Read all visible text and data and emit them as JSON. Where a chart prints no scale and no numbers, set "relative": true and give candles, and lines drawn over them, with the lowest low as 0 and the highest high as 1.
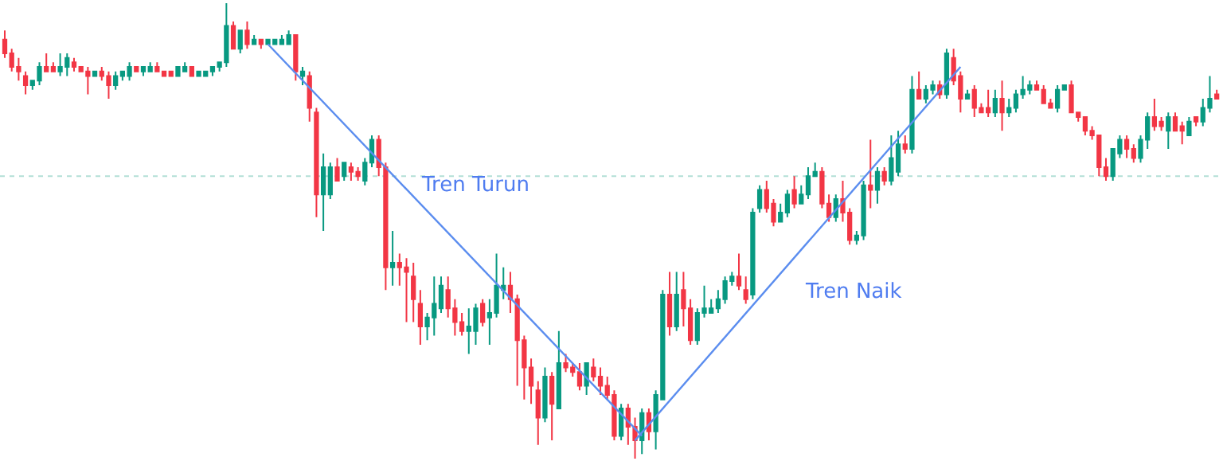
{
  "chart_data": {
    "type": "candlestick",
    "relative": true,
    "categories": [
      null,
      null,
      null,
      null,
      null,
      null,
      null,
      null,
      null,
      null,
      null,
      null,
      null,
      null,
      null,
      null,
      null,
      null,
      null,
      null,
      null,
      null,
      null,
      null,
      null,
      null,
      null,
      null,
      null,
      null,
      null,
      null,
      null,
      null,
      null,
      null,
      null,
      null,
      null,
      null,
      null,
      null,
      null,
      null,
      null,
      null,
      null,
      null,
      null,
      null,
      null,
      null,
      null,
      null,
      null,
      null,
      null,
      null,
      null,
      null,
      null,
      null,
      null,
      null,
      null,
      null,
      null,
      null,
      null,
      null,
      null,
      null,
      null,
      null,
      null,
      null,
      null,
      null,
      null,
      null,
      null,
      null,
      null,
      null,
      null,
      null,
      null,
      null,
      null,
      null,
      null,
      null,
      null,
      null,
      null,
      null,
      null,
      null,
      null,
      null,
      null,
      null,
      null,
      null,
      null,
      null,
      null,
      null,
      null,
      null,
      null,
      null,
      null,
      null,
      null,
      null,
      null,
      null,
      null,
      null,
      null,
      null,
      null,
      null,
      null,
      null,
      null,
      null,
      null,
      null,
      null,
      null,
      null,
      null,
      null,
      null,
      null,
      null,
      null,
      null,
      null,
      null,
      null,
      null,
      null,
      null,
      null,
      null,
      null,
      null,
      null,
      null,
      null,
      null,
      null,
      null,
      null,
      null,
      null,
      null,
      null,
      null,
      null,
      null,
      null,
      null,
      null,
      null,
      null,
      null,
      null,
      null,
      null,
      null,
      null,
      null
    ],
    "ohlc": [
      [
        0.92,
        0.94,
        0.88,
        0.89
      ],
      [
        0.89,
        0.9,
        0.85,
        0.86
      ],
      [
        0.86,
        0.88,
        0.83,
        0.85
      ],
      [
        0.84,
        0.85,
        0.8,
        0.82
      ],
      [
        0.82,
        0.83,
        0.81,
        0.83
      ],
      [
        0.83,
        0.87,
        0.82,
        0.86
      ],
      [
        0.86,
        0.89,
        0.85,
        0.85
      ],
      [
        0.86,
        0.87,
        0.85,
        0.85
      ],
      [
        0.85,
        0.89,
        0.84,
        0.86
      ],
      [
        0.86,
        0.89,
        0.84,
        0.88
      ],
      [
        0.87,
        0.88,
        0.85,
        0.86
      ],
      [
        0.86,
        0.86,
        0.85,
        0.85
      ],
      [
        0.85,
        0.86,
        0.8,
        0.84
      ],
      [
        0.84,
        0.85,
        0.84,
        0.85
      ],
      [
        0.85,
        0.86,
        0.83,
        0.84
      ],
      [
        0.84,
        0.85,
        0.79,
        0.82
      ],
      [
        0.82,
        0.85,
        0.81,
        0.84
      ],
      [
        0.84,
        0.85,
        0.83,
        0.85
      ],
      [
        0.84,
        0.87,
        0.83,
        0.86
      ],
      [
        0.86,
        0.86,
        0.85,
        0.85
      ],
      [
        0.85,
        0.86,
        0.84,
        0.86
      ],
      [
        0.85,
        0.87,
        0.85,
        0.86
      ],
      [
        0.86,
        0.87,
        0.85,
        0.85
      ],
      [
        0.85,
        0.85,
        0.84,
        0.84
      ],
      [
        0.85,
        0.85,
        0.84,
        0.84
      ],
      [
        0.84,
        0.86,
        0.84,
        0.86
      ],
      [
        0.85,
        0.87,
        0.85,
        0.86
      ],
      [
        0.86,
        0.86,
        0.84,
        0.84
      ],
      [
        0.84,
        0.85,
        0.84,
        0.85
      ],
      [
        0.84,
        0.85,
        0.84,
        0.85
      ],
      [
        0.85,
        0.86,
        0.84,
        0.86
      ],
      [
        0.86,
        0.87,
        0.85,
        0.87
      ],
      [
        0.87,
        1.0,
        0.86,
        0.95
      ],
      [
        0.95,
        0.96,
        0.9,
        0.9
      ],
      [
        0.9,
        0.94,
        0.89,
        0.94
      ],
      [
        0.94,
        0.96,
        0.9,
        0.91
      ],
      [
        0.91,
        0.93,
        0.91,
        0.92
      ],
      [
        0.92,
        0.92,
        0.9,
        0.91
      ],
      [
        0.91,
        0.92,
        0.91,
        0.92
      ],
      [
        0.91,
        0.92,
        0.91,
        0.92
      ],
      [
        0.91,
        0.93,
        0.91,
        0.92
      ],
      [
        0.91,
        0.94,
        0.91,
        0.93
      ],
      [
        0.93,
        0.93,
        0.83,
        0.85
      ],
      [
        0.84,
        0.86,
        0.82,
        0.85
      ],
      [
        0.84,
        0.85,
        0.74,
        0.77
      ],
      [
        0.76,
        0.77,
        0.53,
        0.58
      ],
      [
        0.58,
        0.67,
        0.5,
        0.64
      ],
      [
        0.58,
        0.65,
        0.57,
        0.64
      ],
      [
        0.64,
        0.66,
        0.61,
        0.61
      ],
      [
        0.62,
        0.65,
        0.61,
        0.65
      ],
      [
        0.64,
        0.65,
        0.61,
        0.63
      ],
      [
        0.63,
        0.64,
        0.61,
        0.62
      ],
      [
        0.61,
        0.66,
        0.6,
        0.65
      ],
      [
        0.65,
        0.71,
        0.64,
        0.7
      ],
      [
        0.7,
        0.71,
        0.62,
        0.64
      ],
      [
        0.64,
        0.65,
        0.37,
        0.42
      ],
      [
        0.42,
        0.5,
        0.38,
        0.43
      ],
      [
        0.43,
        0.45,
        0.38,
        0.42
      ],
      [
        0.42,
        0.44,
        0.3,
        0.41
      ],
      [
        0.4,
        0.43,
        0.3,
        0.35
      ],
      [
        0.34,
        0.37,
        0.25,
        0.29
      ],
      [
        0.29,
        0.32,
        0.26,
        0.31
      ],
      [
        0.31,
        0.4,
        0.27,
        0.34
      ],
      [
        0.33,
        0.4,
        0.32,
        0.38
      ],
      [
        0.37,
        0.4,
        0.31,
        0.33
      ],
      [
        0.33,
        0.35,
        0.27,
        0.3
      ],
      [
        0.3,
        0.32,
        0.27,
        0.28
      ],
      [
        0.28,
        0.33,
        0.23,
        0.29
      ],
      [
        0.28,
        0.34,
        0.25,
        0.33
      ],
      [
        0.34,
        0.35,
        0.29,
        0.3
      ],
      [
        0.31,
        0.35,
        0.25,
        0.32
      ],
      [
        0.32,
        0.45,
        0.31,
        0.38
      ],
      [
        0.37,
        0.42,
        0.35,
        0.38
      ],
      [
        0.38,
        0.41,
        0.32,
        0.35
      ],
      [
        0.35,
        0.36,
        0.16,
        0.26
      ],
      [
        0.26,
        0.27,
        0.13,
        0.2
      ],
      [
        0.2,
        0.22,
        0.12,
        0.16
      ],
      [
        0.15,
        0.17,
        0.03,
        0.09
      ],
      [
        0.09,
        0.2,
        0.08,
        0.18
      ],
      [
        0.18,
        0.19,
        0.04,
        0.12
      ],
      [
        0.11,
        0.28,
        0.11,
        0.21
      ],
      [
        0.21,
        0.23,
        0.19,
        0.2
      ],
      [
        0.2,
        0.21,
        0.18,
        0.19
      ],
      [
        0.19,
        0.21,
        0.15,
        0.16
      ],
      [
        0.16,
        0.21,
        0.14,
        0.21
      ],
      [
        0.2,
        0.22,
        0.17,
        0.18
      ],
      [
        0.18,
        0.2,
        0.14,
        0.16
      ],
      [
        0.16,
        0.18,
        0.13,
        0.14
      ],
      [
        0.14,
        0.15,
        0.04,
        0.05
      ],
      [
        0.05,
        0.12,
        0.04,
        0.11
      ],
      [
        0.11,
        0.12,
        0.03,
        0.07
      ],
      [
        0.07,
        0.09,
        0.0,
        0.04
      ],
      [
        0.04,
        0.11,
        0.01,
        0.1
      ],
      [
        0.1,
        0.11,
        0.04,
        0.06
      ],
      [
        0.06,
        0.15,
        0.02,
        0.14
      ],
      [
        0.13,
        0.37,
        0.13,
        0.36
      ],
      [
        0.36,
        0.41,
        0.27,
        0.29
      ],
      [
        0.29,
        0.41,
        0.28,
        0.36
      ],
      [
        0.37,
        0.41,
        0.29,
        0.33
      ],
      [
        0.33,
        0.35,
        0.25,
        0.26
      ],
      [
        0.26,
        0.33,
        0.25,
        0.32
      ],
      [
        0.32,
        0.38,
        0.31,
        0.33
      ],
      [
        0.32,
        0.35,
        0.32,
        0.33
      ],
      [
        0.33,
        0.37,
        0.32,
        0.35
      ],
      [
        0.35,
        0.4,
        0.34,
        0.39
      ],
      [
        0.39,
        0.41,
        0.38,
        0.4
      ],
      [
        0.4,
        0.45,
        0.37,
        0.38
      ],
      [
        0.37,
        0.4,
        0.34,
        0.35
      ],
      [
        0.36,
        0.55,
        0.35,
        0.54
      ],
      [
        0.55,
        0.6,
        0.54,
        0.59
      ],
      [
        0.59,
        0.61,
        0.54,
        0.55
      ],
      [
        0.56,
        0.57,
        0.51,
        0.52
      ],
      [
        0.52,
        0.56,
        0.52,
        0.54
      ],
      [
        0.54,
        0.59,
        0.53,
        0.58
      ],
      [
        0.59,
        0.62,
        0.55,
        0.56
      ],
      [
        0.56,
        0.6,
        0.56,
        0.58
      ],
      [
        0.58,
        0.64,
        0.57,
        0.62
      ],
      [
        0.62,
        0.65,
        0.62,
        0.63
      ],
      [
        0.63,
        0.64,
        0.55,
        0.56
      ],
      [
        0.56,
        0.58,
        0.52,
        0.53
      ],
      [
        0.53,
        0.58,
        0.52,
        0.57
      ],
      [
        0.57,
        0.61,
        0.52,
        0.54
      ],
      [
        0.54,
        0.55,
        0.47,
        0.48
      ],
      [
        0.48,
        0.5,
        0.47,
        0.49
      ],
      [
        0.49,
        0.61,
        0.48,
        0.6
      ],
      [
        0.6,
        0.7,
        0.55,
        0.59
      ],
      [
        0.59,
        0.64,
        0.56,
        0.63
      ],
      [
        0.63,
        0.64,
        0.6,
        0.61
      ],
      [
        0.61,
        0.71,
        0.6,
        0.66
      ],
      [
        0.63,
        0.72,
        0.62,
        0.69
      ],
      [
        0.69,
        0.71,
        0.67,
        0.68
      ],
      [
        0.68,
        0.84,
        0.67,
        0.81
      ],
      [
        0.81,
        0.85,
        0.79,
        0.79
      ],
      [
        0.79,
        0.82,
        0.78,
        0.81
      ],
      [
        0.81,
        0.83,
        0.8,
        0.82
      ],
      [
        0.82,
        0.83,
        0.79,
        0.8
      ],
      [
        0.8,
        0.9,
        0.79,
        0.89
      ],
      [
        0.88,
        0.9,
        0.82,
        0.83
      ],
      [
        0.84,
        0.85,
        0.76,
        0.79
      ],
      [
        0.79,
        0.81,
        0.79,
        0.8
      ],
      [
        0.81,
        0.82,
        0.75,
        0.77
      ],
      [
        0.77,
        0.78,
        0.76,
        0.76
      ],
      [
        0.77,
        0.81,
        0.75,
        0.76
      ],
      [
        0.76,
        0.81,
        0.75,
        0.79
      ],
      [
        0.79,
        0.83,
        0.72,
        0.76
      ],
      [
        0.76,
        0.79,
        0.75,
        0.77
      ],
      [
        0.77,
        0.81,
        0.76,
        0.8
      ],
      [
        0.8,
        0.84,
        0.79,
        0.81
      ],
      [
        0.81,
        0.83,
        0.8,
        0.82
      ],
      [
        0.82,
        0.83,
        0.81,
        0.81
      ],
      [
        0.81,
        0.82,
        0.78,
        0.78
      ],
      [
        0.78,
        0.79,
        0.77,
        0.77
      ],
      [
        0.77,
        0.82,
        0.76,
        0.81
      ],
      [
        0.81,
        0.82,
        0.81,
        0.82
      ],
      [
        0.82,
        0.83,
        0.76,
        0.76
      ],
      [
        0.76,
        0.76,
        0.74,
        0.75
      ],
      [
        0.75,
        0.75,
        0.71,
        0.72
      ],
      [
        0.72,
        0.73,
        0.7,
        0.71
      ],
      [
        0.71,
        0.71,
        0.62,
        0.64
      ],
      [
        0.64,
        0.66,
        0.61,
        0.62
      ],
      [
        0.62,
        0.68,
        0.61,
        0.68
      ],
      [
        0.67,
        0.71,
        0.66,
        0.7
      ],
      [
        0.7,
        0.71,
        0.66,
        0.68
      ],
      [
        0.68,
        0.69,
        0.65,
        0.66
      ],
      [
        0.66,
        0.71,
        0.65,
        0.7
      ],
      [
        0.7,
        0.76,
        0.68,
        0.75
      ],
      [
        0.75,
        0.79,
        0.72,
        0.73
      ],
      [
        0.74,
        0.75,
        0.72,
        0.73
      ],
      [
        0.72,
        0.76,
        0.68,
        0.75
      ],
      [
        0.75,
        0.76,
        0.72,
        0.72
      ],
      [
        0.73,
        0.74,
        0.69,
        0.72
      ],
      [
        0.71,
        0.75,
        0.71,
        0.74
      ],
      [
        0.75,
        0.75,
        0.73,
        0.74
      ],
      [
        0.74,
        0.79,
        0.73,
        0.77
      ],
      [
        0.77,
        0.84,
        0.76,
        0.79
      ],
      [
        0.8,
        0.81,
        0.79,
        0.79
      ]
    ],
    "colors": [
      "#f23645",
      "#f23645",
      "#f23645",
      "#f23645",
      "#089981",
      "#089981",
      "#f23645",
      "#f23645",
      "#089981",
      "#089981",
      "#f23645",
      "#f23645",
      "#f23645",
      "#089981",
      "#f23645",
      "#f23645",
      "#089981",
      "#089981",
      "#089981",
      "#f23645",
      "#089981",
      "#089981",
      "#f23645",
      "#f23645",
      "#f23645",
      "#089981",
      "#089981",
      "#f23645",
      "#089981",
      "#089981",
      "#089981",
      "#089981",
      "#089981",
      "#f23645",
      "#089981",
      "#f23645",
      "#089981",
      "#f23645",
      "#089981",
      "#089981",
      "#089981",
      "#089981",
      "#f23645",
      "#089981",
      "#f23645",
      "#f23645",
      "#089981",
      "#089981",
      "#f23645",
      "#089981",
      "#f23645",
      "#f23645",
      "#089981",
      "#089981",
      "#f23645",
      "#f23645",
      "#089981",
      "#f23645",
      "#f23645",
      "#f23645",
      "#f23645",
      "#089981",
      "#089981",
      "#089981",
      "#f23645",
      "#f23645",
      "#f23645",
      "#089981",
      "#089981",
      "#f23645",
      "#089981",
      "#089981",
      "#089981",
      "#f23645",
      "#f23645",
      "#f23645",
      "#f23645",
      "#f23645",
      "#089981",
      "#f23645",
      "#089981",
      "#f23645",
      "#f23645",
      "#f23645",
      "#089981",
      "#f23645",
      "#f23645",
      "#f23645",
      "#f23645",
      "#089981",
      "#f23645",
      "#f23645",
      "#089981",
      "#f23645",
      "#089981",
      "#089981",
      "#f23645",
      "#089981",
      "#f23645",
      "#f23645",
      "#089981",
      "#089981",
      "#089981",
      "#089981",
      "#089981",
      "#089981",
      "#f23645",
      "#f23645",
      "#089981",
      "#089981",
      "#f23645",
      "#f23645",
      "#089981",
      "#089981",
      "#f23645",
      "#089981",
      "#089981",
      "#089981",
      "#f23645",
      "#f23645",
      "#089981",
      "#f23645",
      "#f23645",
      "#089981",
      "#089981",
      "#f23645",
      "#089981",
      "#f23645",
      "#089981",
      "#089981",
      "#f23645",
      "#089981",
      "#f23645",
      "#089981",
      "#089981",
      "#f23645",
      "#089981",
      "#f23645",
      "#f23645",
      "#089981",
      "#f23645",
      "#f23645",
      "#f23645",
      "#089981",
      "#f23645",
      "#089981",
      "#089981",
      "#089981",
      "#089981",
      "#f23645",
      "#f23645",
      "#f23645",
      "#089981",
      "#089981",
      "#f23645",
      "#f23645",
      "#f23645",
      "#f23645",
      "#f23645",
      "#f23645",
      "#089981",
      "#089981",
      "#f23645",
      "#f23645",
      "#089981",
      "#089981",
      "#f23645",
      "#f23645",
      "#089981",
      "#f23645",
      "#f23645",
      "#089981",
      "#f23645",
      "#089981",
      "#089981",
      "#f23645"
    ],
    "series": [
      {
        "type": "line",
        "color": "#5b8def",
        "values": [
          null,
          null,
          null,
          null,
          null,
          null,
          null,
          null,
          null,
          null,
          null,
          null,
          null,
          null,
          null,
          null,
          null,
          null,
          null,
          null,
          null,
          null,
          null,
          null,
          null,
          null,
          null,
          null,
          null,
          null,
          null,
          null,
          null,
          null,
          null,
          null,
          null,
          null,
          0.91,
          null,
          null,
          null,
          null,
          null,
          null,
          null,
          null,
          null,
          null,
          null,
          null,
          null,
          null,
          null,
          null,
          null,
          null,
          null,
          null,
          null,
          null,
          null,
          null,
          null,
          null,
          null,
          null,
          null,
          null,
          null,
          null,
          null,
          null,
          null,
          null,
          null,
          null,
          null,
          null,
          null,
          null,
          null,
          null,
          null,
          null,
          null,
          null,
          null,
          null,
          null,
          null,
          null,
          0.05,
          null,
          null,
          null,
          null,
          null,
          null,
          null,
          null,
          null,
          null,
          null,
          null,
          null,
          null,
          null,
          null,
          null,
          null,
          null,
          null,
          null,
          null,
          null,
          null,
          null,
          null,
          null,
          null,
          null,
          null,
          null,
          null,
          null,
          null,
          null,
          null,
          null,
          null,
          null,
          null,
          null,
          null,
          null,
          null,
          null,
          null,
          null,
          null,
          null,
          null,
          null,
          null,
          null,
          null,
          null,
          null,
          null,
          null,
          null,
          null,
          null,
          null,
          null,
          null,
          null,
          null,
          null,
          null,
          null,
          null,
          null,
          null,
          null,
          null,
          null,
          null,
          null,
          null,
          null,
          null,
          null,
          null,
          null
        ]
      },
      {
        "type": "line",
        "color": "#5b8def",
        "values": [
          null,
          null,
          null,
          null,
          null,
          null,
          null,
          null,
          null,
          null,
          null,
          null,
          null,
          null,
          null,
          null,
          null,
          null,
          null,
          null,
          null,
          null,
          null,
          null,
          null,
          null,
          null,
          null,
          null,
          null,
          null,
          null,
          null,
          null,
          null,
          null,
          null,
          null,
          null,
          null,
          null,
          null,
          null,
          null,
          null,
          null,
          null,
          null,
          null,
          null,
          null,
          null,
          null,
          null,
          null,
          null,
          null,
          null,
          null,
          null,
          null,
          null,
          null,
          null,
          null,
          null,
          null,
          null,
          null,
          null,
          null,
          null,
          null,
          null,
          null,
          null,
          null,
          null,
          null,
          null,
          null,
          null,
          null,
          null,
          null,
          null,
          null,
          null,
          null,
          null,
          null,
          0.04,
          null,
          null,
          null,
          null,
          null,
          null,
          null,
          null,
          null,
          null,
          null,
          null,
          null,
          null,
          null,
          null,
          null,
          null,
          null,
          null,
          null,
          null,
          null,
          null,
          null,
          null,
          null,
          null,
          null,
          null,
          null,
          null,
          null,
          null,
          null,
          null,
          null,
          null,
          null,
          null,
          null,
          null,
          null,
          null,
          null,
          null,
          0.86,
          null,
          null,
          null,
          null,
          null,
          null,
          null,
          null,
          null,
          null,
          null,
          null,
          null,
          null,
          null,
          null,
          null,
          null,
          null,
          null,
          null,
          null,
          null,
          null,
          null,
          null,
          null,
          null,
          null,
          null,
          null,
          null,
          null,
          null,
          null,
          null,
          null
        ]
      }
    ],
    "ref_lines": [
      {
        "axis": "y",
        "value": 0.62,
        "color": "#b2dfd6",
        "line_style": "dotted"
      }
    ],
    "annotations": [
      "Tren Turun",
      "Tren Naik"
    ]
  }
}
